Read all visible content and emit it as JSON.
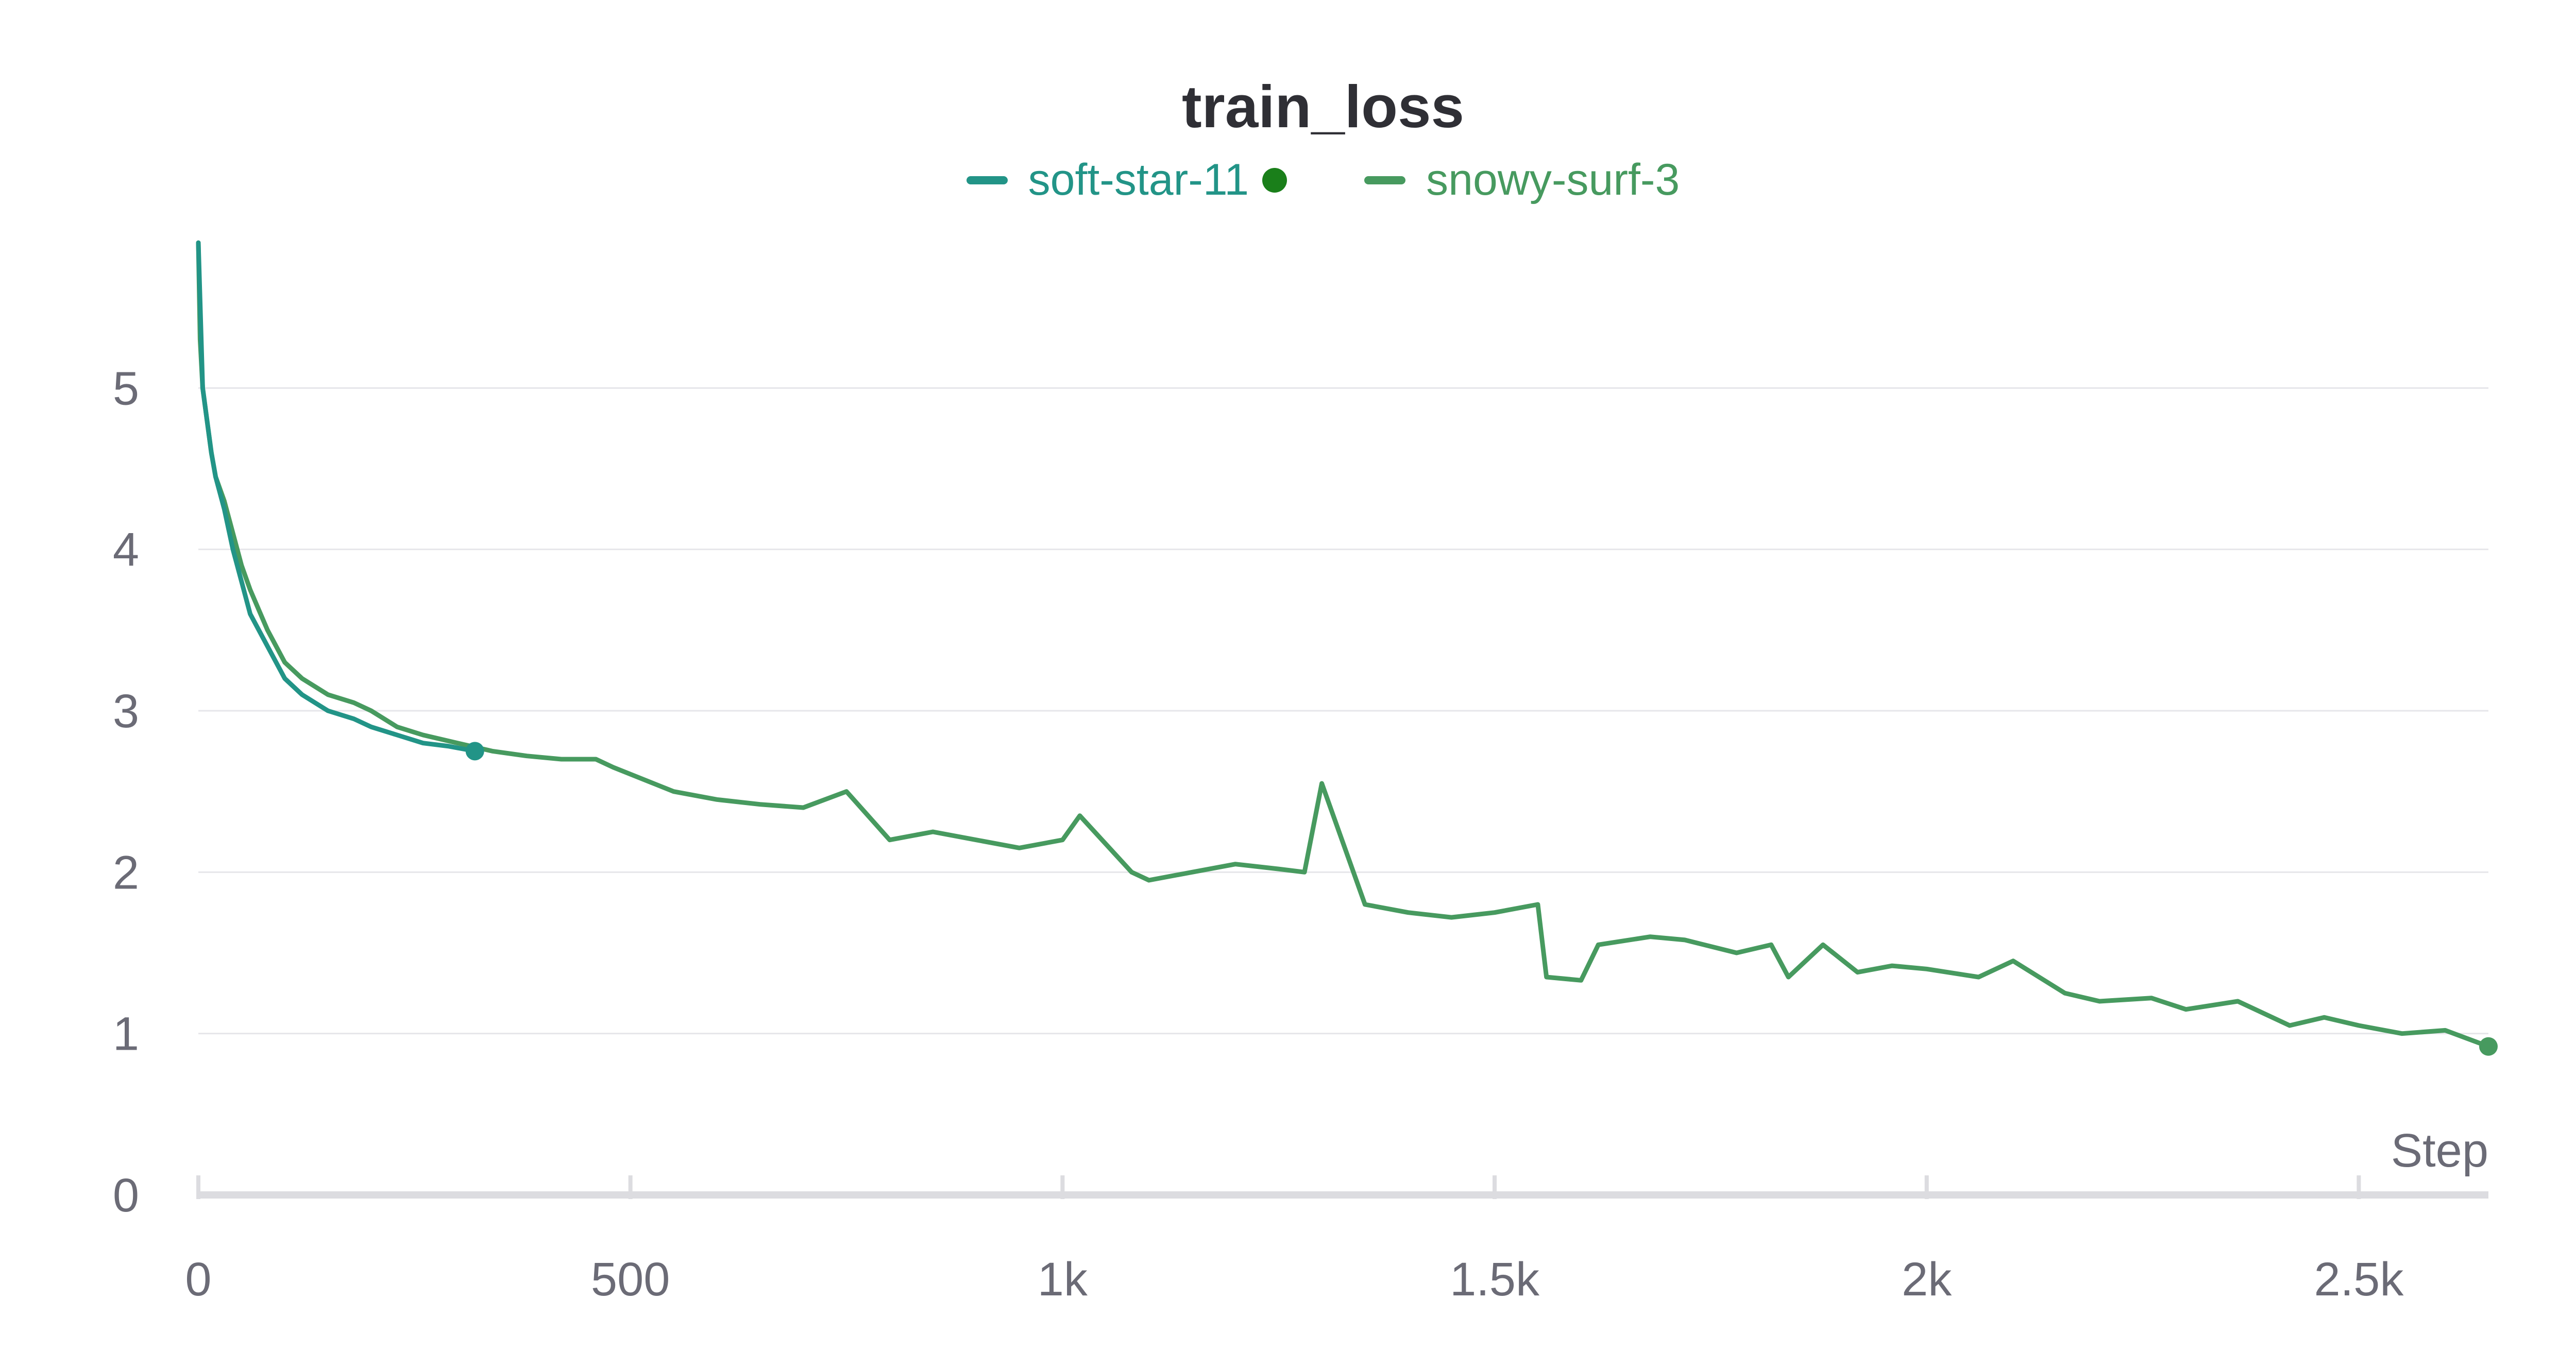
{
  "chart_data": {
    "type": "line",
    "title": "train_loss",
    "xlabel": "Step",
    "ylabel": "",
    "xlim": [
      0,
      2650
    ],
    "ylim": [
      0,
      6
    ],
    "x_ticks": [
      0,
      500,
      1000,
      1500,
      2000,
      2500
    ],
    "x_tick_labels": [
      "0",
      "500",
      "1k",
      "1.5k",
      "2k",
      "2.5k"
    ],
    "y_ticks": [
      0,
      1,
      2,
      3,
      4,
      5
    ],
    "y_tick_labels": [
      "0",
      "1",
      "2",
      "3",
      "4",
      "5"
    ],
    "grid": "horizontal",
    "legend_position": "top-center",
    "series": [
      {
        "name": "snowy-surf-3",
        "color": "#479a5f",
        "x": [
          0,
          2,
          5,
          10,
          15,
          20,
          30,
          40,
          50,
          60,
          80,
          100,
          120,
          150,
          180,
          200,
          230,
          260,
          300,
          340,
          380,
          420,
          460,
          480,
          550,
          600,
          650,
          700,
          750,
          800,
          850,
          900,
          950,
          1000,
          1020,
          1080,
          1100,
          1150,
          1200,
          1250,
          1280,
          1300,
          1350,
          1400,
          1450,
          1500,
          1550,
          1560,
          1600,
          1620,
          1680,
          1720,
          1780,
          1820,
          1840,
          1880,
          1920,
          1960,
          2000,
          2060,
          2100,
          2160,
          2200,
          2260,
          2300,
          2360,
          2420,
          2460,
          2500,
          2550,
          2600,
          2650
        ],
        "values": [
          5.9,
          5.3,
          5.0,
          4.8,
          4.6,
          4.45,
          4.3,
          4.1,
          3.9,
          3.75,
          3.5,
          3.3,
          3.2,
          3.1,
          3.05,
          3.0,
          2.9,
          2.85,
          2.8,
          2.75,
          2.72,
          2.7,
          2.7,
          2.65,
          2.5,
          2.45,
          2.42,
          2.4,
          2.5,
          2.2,
          2.25,
          2.2,
          2.15,
          2.2,
          2.35,
          2.0,
          1.95,
          2.0,
          2.05,
          2.02,
          2.0,
          2.55,
          1.8,
          1.75,
          1.72,
          1.75,
          1.8,
          1.35,
          1.33,
          1.55,
          1.6,
          1.58,
          1.5,
          1.55,
          1.35,
          1.55,
          1.38,
          1.42,
          1.4,
          1.35,
          1.45,
          1.25,
          1.2,
          1.22,
          1.15,
          1.2,
          1.05,
          1.1,
          1.05,
          1.0,
          1.02,
          0.92
        ]
      },
      {
        "name": "soft-star-11",
        "color": "#229487",
        "x": [
          0,
          5,
          10,
          15,
          20,
          30,
          40,
          50,
          60,
          80,
          100,
          120,
          150,
          180,
          200,
          230,
          260,
          290,
          320
        ],
        "values": [
          5.9,
          5.0,
          4.8,
          4.6,
          4.45,
          4.25,
          4.0,
          3.8,
          3.6,
          3.4,
          3.2,
          3.1,
          3.0,
          2.95,
          2.9,
          2.85,
          2.8,
          2.78,
          2.75
        ]
      }
    ],
    "legend": [
      {
        "label": "soft-star-11",
        "color": "#229487",
        "marker_color": "#1a7f1a"
      },
      {
        "label": "snowy-surf-3",
        "color": "#479a5f"
      }
    ]
  }
}
